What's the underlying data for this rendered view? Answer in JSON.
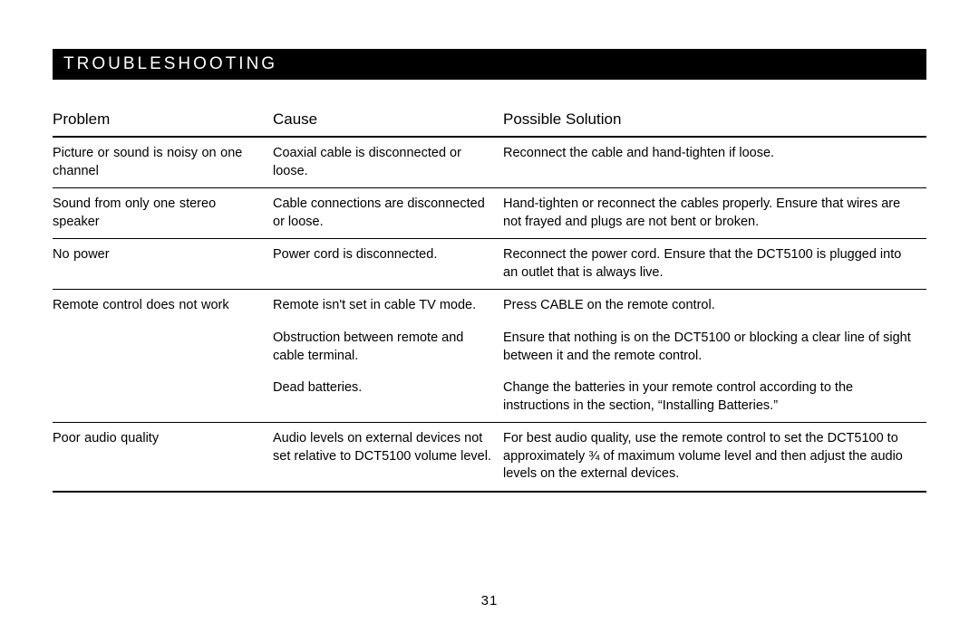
{
  "section_title": "TROUBLESHOOTING",
  "columns": {
    "problem": "Problem",
    "cause": "Cause",
    "solution": "Possible Solution"
  },
  "rows": [
    {
      "problem": "Picture or sound is noisy on one channel",
      "cause": "Coaxial cable is disconnected or loose.",
      "solution": "Reconnect the cable and hand-tighten if loose.",
      "group_end": true
    },
    {
      "problem": "Sound from only one stereo   speaker",
      "cause": "Cable connections are disconnected or loose.",
      "solution": "Hand-tighten or reconnect the cables properly. Ensure that wires are not frayed and plugs are not bent or broken.",
      "group_end": true
    },
    {
      "problem": "No power",
      "cause": "Power cord is disconnected.",
      "solution": "Reconnect the power cord. Ensure that the DCT5100 is plugged into an outlet that is always live.",
      "group_end": true
    },
    {
      "problem": "Remote control does not work",
      "cause": "Remote isn't set in cable TV mode.",
      "solution": "Press CABLE on the remote control."
    },
    {
      "problem": "",
      "cause": "Obstruction between remote and cable terminal.",
      "solution": "Ensure that nothing is on the DCT5100 or blocking a clear line of sight between it and the remote control."
    },
    {
      "problem": "",
      "cause": "Dead batteries.",
      "solution": "Change the batteries in your remote control according to the instructions in the section, “Installing Batteries.”",
      "group_end": true
    },
    {
      "problem": "Poor audio quality",
      "cause": "Audio levels on external devices not set relative to DCT5100 volume level.",
      "solution": "For best audio quality, use the remote control to set the DCT5100 to approximately ¾ of maximum volume level and then adjust the audio levels on the external devices.",
      "last_group_end": true
    }
  ],
  "page_number": "31"
}
